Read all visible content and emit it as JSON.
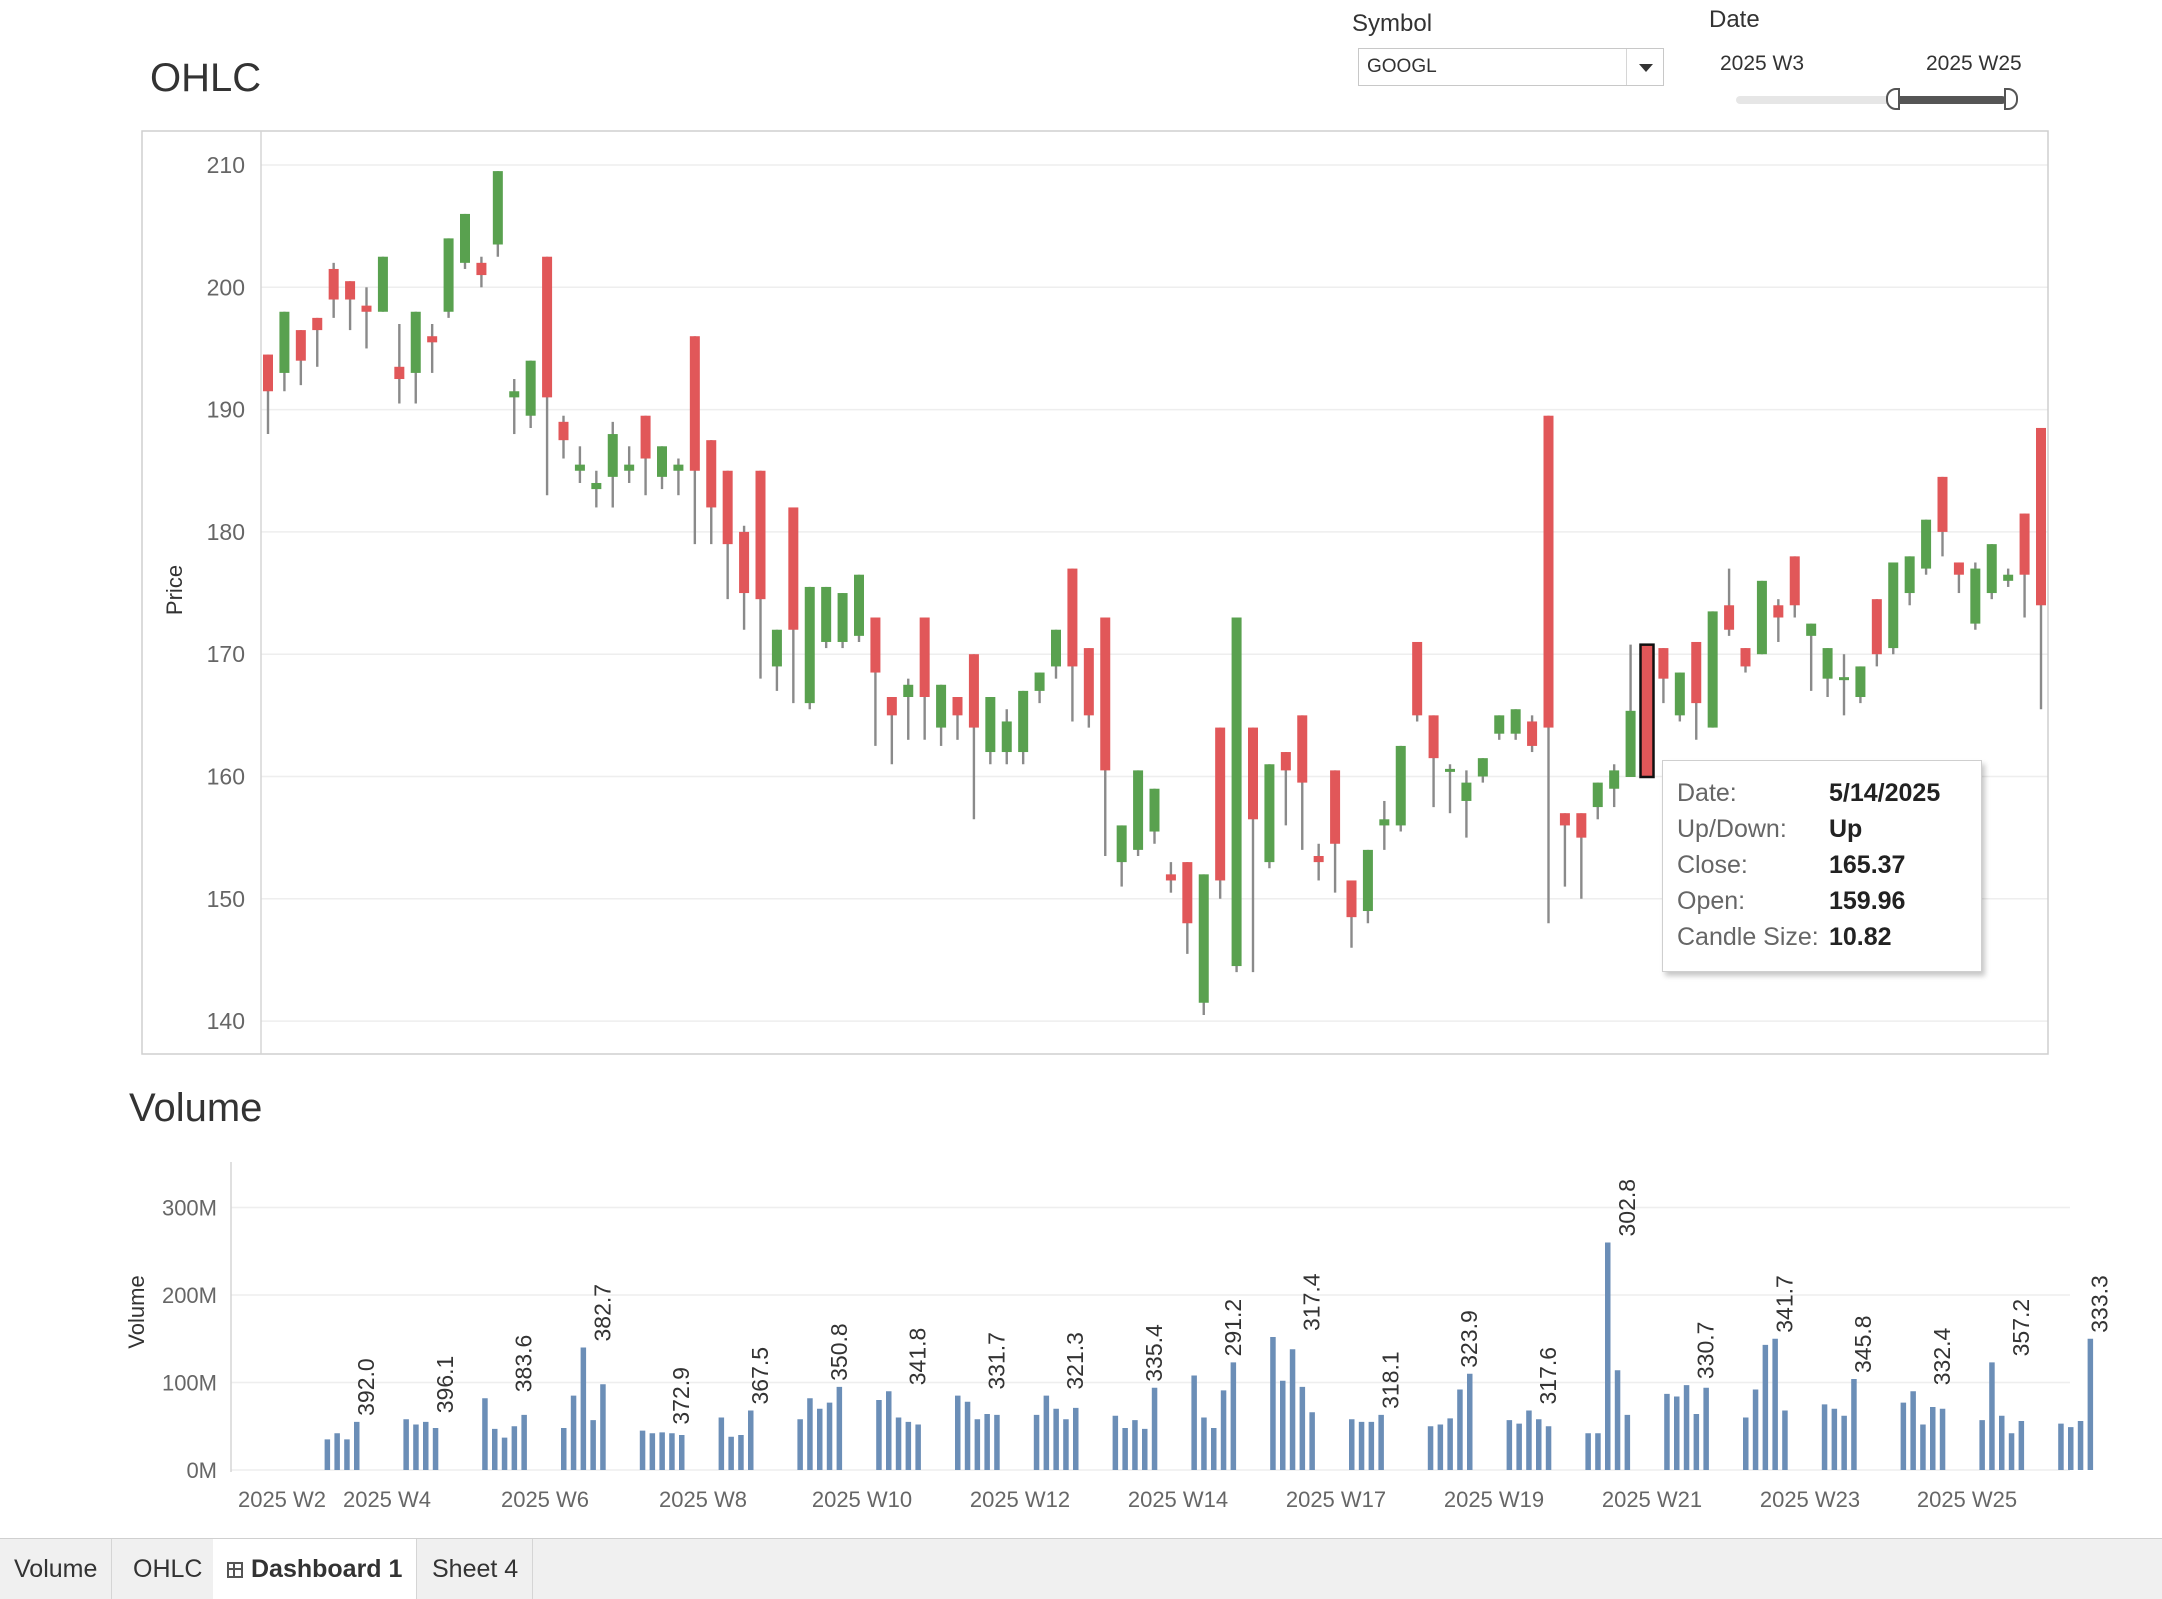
{
  "ohlc": {
    "title": "OHLC",
    "y_axis_label": "Price",
    "y_ticks": [
      "210",
      "200",
      "190",
      "180",
      "170",
      "160",
      "150",
      "140"
    ]
  },
  "volume": {
    "title": "Volume",
    "y_axis_label": "Volume",
    "y_ticks": [
      "300M",
      "200M",
      "100M",
      "0M"
    ],
    "x_ticks": [
      "2025 W2",
      "2025 W4",
      "2025 W6",
      "2025 W8",
      "2025 W10",
      "2025 W12",
      "2025 W14",
      "2025 W17",
      "2025 W19",
      "2025 W21",
      "2025 W23",
      "2025 W25"
    ]
  },
  "filters": {
    "symbol_label": "Symbol",
    "symbol_value": "GOOGL",
    "date_label": "Date",
    "date_start": "2025 W3",
    "date_end": "2025 W25"
  },
  "tooltip": {
    "date_key": "Date:",
    "date_val": "5/14/2025",
    "updown_key": "Up/Down:",
    "updown_val": "Up",
    "close_key": "Close:",
    "close_val": "165.37",
    "open_key": "Open:",
    "open_val": "159.96",
    "size_key": "Candle Size:",
    "size_val": "10.82"
  },
  "tabs": [
    "Volume",
    "OHLC",
    "Dashboard 1",
    "Sheet 4"
  ],
  "colors": {
    "up": "#59a14f",
    "down": "#e15759",
    "volume_bar": "#6b8eb7",
    "wick": "#8a8a8a"
  },
  "chart_data": [
    {
      "type": "candlestick",
      "title": "OHLC",
      "ylabel": "Price",
      "ylim": [
        137,
        212
      ],
      "candles": [
        {
          "o": 194.5,
          "c": 191.5,
          "h": 194.5,
          "l": 188.0
        },
        {
          "o": 193.0,
          "c": 198.0,
          "h": 198.0,
          "l": 191.5
        },
        {
          "o": 196.5,
          "c": 194.0,
          "h": 196.5,
          "l": 192.0
        },
        {
          "o": 197.5,
          "c": 196.5,
          "h": 197.5,
          "l": 193.5
        },
        {
          "o": 201.5,
          "c": 199.0,
          "h": 202.0,
          "l": 197.5
        },
        {
          "o": 200.5,
          "c": 199.0,
          "h": 200.5,
          "l": 196.5
        },
        {
          "o": 198.5,
          "c": 198.0,
          "h": 200.0,
          "l": 195.0
        },
        {
          "o": 198.0,
          "c": 202.5,
          "h": 202.5,
          "l": 198.0
        },
        {
          "o": 193.5,
          "c": 192.5,
          "h": 197.0,
          "l": 190.5
        },
        {
          "o": 193.0,
          "c": 198.0,
          "h": 198.0,
          "l": 190.5
        },
        {
          "o": 196.0,
          "c": 195.5,
          "h": 197.0,
          "l": 193.0
        },
        {
          "o": 198.0,
          "c": 204.0,
          "h": 204.0,
          "l": 197.5
        },
        {
          "o": 202.0,
          "c": 206.0,
          "h": 206.0,
          "l": 201.5
        },
        {
          "o": 202.0,
          "c": 201.0,
          "h": 202.5,
          "l": 200.0
        },
        {
          "o": 203.5,
          "c": 209.5,
          "h": 209.5,
          "l": 202.5
        },
        {
          "o": 191.0,
          "c": 191.5,
          "h": 192.5,
          "l": 188.0
        },
        {
          "o": 189.5,
          "c": 194.0,
          "h": 194.0,
          "l": 188.5
        },
        {
          "o": 202.5,
          "c": 191.0,
          "h": 202.5,
          "l": 183.0
        },
        {
          "o": 189.0,
          "c": 187.5,
          "h": 189.5,
          "l": 186.0
        },
        {
          "o": 185.0,
          "c": 185.5,
          "h": 187.0,
          "l": 184.0
        },
        {
          "o": 183.5,
          "c": 184.0,
          "h": 185.0,
          "l": 182.0
        },
        {
          "o": 184.5,
          "c": 188.0,
          "h": 189.0,
          "l": 182.0
        },
        {
          "o": 185.0,
          "c": 185.5,
          "h": 187.0,
          "l": 184.0
        },
        {
          "o": 189.5,
          "c": 186.0,
          "h": 189.5,
          "l": 183.0
        },
        {
          "o": 184.5,
          "c": 187.0,
          "h": 187.0,
          "l": 183.5
        },
        {
          "o": 185.0,
          "c": 185.5,
          "h": 186.0,
          "l": 183.0
        },
        {
          "o": 196.0,
          "c": 185.0,
          "h": 196.0,
          "l": 179.0
        },
        {
          "o": 187.5,
          "c": 182.0,
          "h": 187.5,
          "l": 179.0
        },
        {
          "o": 185.0,
          "c": 179.0,
          "h": 185.0,
          "l": 174.5
        },
        {
          "o": 180.0,
          "c": 175.0,
          "h": 180.5,
          "l": 172.0
        },
        {
          "o": 185.0,
          "c": 174.5,
          "h": 185.0,
          "l": 168.0
        },
        {
          "o": 169.0,
          "c": 172.0,
          "h": 172.0,
          "l": 167.0
        },
        {
          "o": 182.0,
          "c": 172.0,
          "h": 182.0,
          "l": 166.0
        },
        {
          "o": 166.0,
          "c": 175.5,
          "h": 175.5,
          "l": 165.5
        },
        {
          "o": 171.0,
          "c": 175.5,
          "h": 175.5,
          "l": 170.5
        },
        {
          "o": 171.0,
          "c": 175.0,
          "h": 175.0,
          "l": 170.5
        },
        {
          "o": 171.5,
          "c": 176.5,
          "h": 176.5,
          "l": 171.0
        },
        {
          "o": 173.0,
          "c": 168.5,
          "h": 173.0,
          "l": 162.5
        },
        {
          "o": 166.5,
          "c": 165.0,
          "h": 166.5,
          "l": 161.0
        },
        {
          "o": 166.5,
          "c": 167.5,
          "h": 168.0,
          "l": 163.0
        },
        {
          "o": 173.0,
          "c": 166.5,
          "h": 173.0,
          "l": 163.0
        },
        {
          "o": 164.0,
          "c": 167.5,
          "h": 167.5,
          "l": 162.5
        },
        {
          "o": 166.5,
          "c": 165.0,
          "h": 166.5,
          "l": 163.0
        },
        {
          "o": 170.0,
          "c": 164.0,
          "h": 170.0,
          "l": 156.5
        },
        {
          "o": 162.0,
          "c": 166.5,
          "h": 166.5,
          "l": 161.0
        },
        {
          "o": 162.0,
          "c": 164.5,
          "h": 165.5,
          "l": 161.0
        },
        {
          "o": 162.0,
          "c": 167.0,
          "h": 167.0,
          "l": 161.0
        },
        {
          "o": 167.0,
          "c": 168.5,
          "h": 168.5,
          "l": 166.0
        },
        {
          "o": 169.0,
          "c": 172.0,
          "h": 172.0,
          "l": 168.0
        },
        {
          "o": 177.0,
          "c": 169.0,
          "h": 177.0,
          "l": 164.5
        },
        {
          "o": 170.5,
          "c": 165.0,
          "h": 170.5,
          "l": 164.0
        },
        {
          "o": 173.0,
          "c": 160.5,
          "h": 173.0,
          "l": 153.5
        },
        {
          "o": 153.0,
          "c": 156.0,
          "h": 156.0,
          "l": 151.0
        },
        {
          "o": 154.0,
          "c": 160.5,
          "h": 160.5,
          "l": 153.5
        },
        {
          "o": 155.5,
          "c": 159.0,
          "h": 159.0,
          "l": 154.5
        },
        {
          "o": 152.0,
          "c": 151.5,
          "h": 153.0,
          "l": 150.5
        },
        {
          "o": 153.0,
          "c": 148.0,
          "h": 153.0,
          "l": 145.5
        },
        {
          "o": 141.5,
          "c": 152.0,
          "h": 152.0,
          "l": 140.5
        },
        {
          "o": 164.0,
          "c": 151.5,
          "h": 164.0,
          "l": 150.0
        },
        {
          "o": 144.5,
          "c": 173.0,
          "h": 173.0,
          "l": 144.0
        },
        {
          "o": 164.0,
          "c": 156.5,
          "h": 164.0,
          "l": 144.0
        },
        {
          "o": 153.0,
          "c": 161.0,
          "h": 161.0,
          "l": 152.5
        },
        {
          "o": 162.0,
          "c": 160.5,
          "h": 162.0,
          "l": 156.0
        },
        {
          "o": 165.0,
          "c": 159.5,
          "h": 165.0,
          "l": 154.0
        },
        {
          "o": 153.5,
          "c": 153.0,
          "h": 154.5,
          "l": 151.5
        },
        {
          "o": 160.5,
          "c": 154.5,
          "h": 160.5,
          "l": 150.5
        },
        {
          "o": 151.5,
          "c": 148.5,
          "h": 151.5,
          "l": 146.0
        },
        {
          "o": 149.0,
          "c": 154.0,
          "h": 154.0,
          "l": 148.0
        },
        {
          "o": 156.0,
          "c": 156.5,
          "h": 158.0,
          "l": 154.0
        },
        {
          "o": 156.0,
          "c": 162.5,
          "h": 162.5,
          "l": 155.5
        },
        {
          "o": 171.0,
          "c": 165.0,
          "h": 171.0,
          "l": 164.5
        },
        {
          "o": 165.0,
          "c": 161.5,
          "h": 165.0,
          "l": 157.5
        },
        {
          "o": 160.5,
          "c": 160.5,
          "h": 161.0,
          "l": 157.0
        },
        {
          "o": 158.0,
          "c": 159.5,
          "h": 160.5,
          "l": 155.0
        },
        {
          "o": 160.0,
          "c": 161.5,
          "h": 161.5,
          "l": 159.5
        },
        {
          "o": 163.5,
          "c": 165.0,
          "h": 165.0,
          "l": 163.0
        },
        {
          "o": 163.5,
          "c": 165.5,
          "h": 165.5,
          "l": 163.0
        },
        {
          "o": 164.5,
          "c": 162.5,
          "h": 165.0,
          "l": 162.0
        },
        {
          "o": 189.5,
          "c": 164.0,
          "h": 189.5,
          "l": 148.0
        },
        {
          "o": 157.0,
          "c": 156.0,
          "h": 157.0,
          "l": 151.0
        },
        {
          "o": 157.0,
          "c": 155.0,
          "h": 157.0,
          "l": 150.0
        },
        {
          "o": 157.5,
          "c": 159.5,
          "h": 159.5,
          "l": 156.5
        },
        {
          "o": 159.0,
          "c": 160.5,
          "h": 161.0,
          "l": 157.5
        },
        {
          "o": 159.96,
          "c": 165.37,
          "h": 170.78,
          "l": 159.96
        },
        {
          "o": 170.0,
          "c": 166.5,
          "h": 170.0,
          "l": 162.5
        },
        {
          "o": 170.5,
          "c": 168.0,
          "h": 170.5,
          "l": 166.0
        },
        {
          "o": 165.0,
          "c": 168.5,
          "h": 168.5,
          "l": 164.5
        },
        {
          "o": 171.0,
          "c": 166.0,
          "h": 171.0,
          "l": 163.0
        },
        {
          "o": 164.0,
          "c": 173.5,
          "h": 173.5,
          "l": 164.0
        },
        {
          "o": 174.0,
          "c": 172.0,
          "h": 177.0,
          "l": 171.5
        },
        {
          "o": 170.5,
          "c": 169.0,
          "h": 170.5,
          "l": 168.5
        },
        {
          "o": 170.0,
          "c": 176.0,
          "h": 176.0,
          "l": 170.0
        },
        {
          "o": 174.0,
          "c": 173.0,
          "h": 174.5,
          "l": 171.0
        },
        {
          "o": 178.0,
          "c": 174.0,
          "h": 178.0,
          "l": 173.0
        },
        {
          "o": 171.5,
          "c": 172.5,
          "h": 172.5,
          "l": 167.0
        },
        {
          "o": 168.0,
          "c": 170.5,
          "h": 170.5,
          "l": 166.5
        },
        {
          "o": 168.0,
          "c": 168.0,
          "h": 170.0,
          "l": 165.0
        },
        {
          "o": 166.5,
          "c": 169.0,
          "h": 169.0,
          "l": 166.0
        },
        {
          "o": 174.5,
          "c": 170.0,
          "h": 174.5,
          "l": 169.0
        },
        {
          "o": 170.5,
          "c": 177.5,
          "h": 177.5,
          "l": 170.0
        },
        {
          "o": 175.0,
          "c": 178.0,
          "h": 178.0,
          "l": 174.0
        },
        {
          "o": 177.0,
          "c": 181.0,
          "h": 181.0,
          "l": 176.5
        },
        {
          "o": 184.5,
          "c": 180.0,
          "h": 184.5,
          "l": 178.0
        },
        {
          "o": 177.5,
          "c": 176.5,
          "h": 177.5,
          "l": 175.0
        },
        {
          "o": 172.5,
          "c": 177.0,
          "h": 177.5,
          "l": 172.0
        },
        {
          "o": 175.0,
          "c": 179.0,
          "h": 179.0,
          "l": 174.5
        },
        {
          "o": 176.0,
          "c": 176.5,
          "h": 177.0,
          "l": 175.5
        },
        {
          "o": 181.5,
          "c": 176.5,
          "h": 181.5,
          "l": 173.0
        },
        {
          "o": 188.5,
          "c": 174.0,
          "h": 188.5,
          "l": 165.5
        }
      ]
    },
    {
      "type": "bar",
      "title": "Volume",
      "ylabel": "Volume",
      "ylim": [
        0,
        300
      ],
      "unit": "M",
      "weeks": [
        {
          "values": [],
          "label": ""
        },
        {
          "values": [
            35,
            42,
            35,
            55
          ],
          "label": "392.0"
        },
        {
          "values": [
            58,
            52,
            55,
            48
          ],
          "label": "396.1"
        },
        {
          "values": [
            82,
            47,
            37,
            50,
            63
          ],
          "label": "383.6"
        },
        {
          "values": [
            48,
            85,
            140,
            57,
            98
          ],
          "label": "382.7"
        },
        {
          "values": [
            45,
            42,
            43,
            42,
            40
          ],
          "label": "372.9"
        },
        {
          "values": [
            60,
            38,
            40,
            68
          ],
          "label": "367.5"
        },
        {
          "values": [
            58,
            82,
            70,
            77,
            95
          ],
          "label": "350.8"
        },
        {
          "values": [
            80,
            90,
            60,
            55,
            52
          ],
          "label": "341.8"
        },
        {
          "values": [
            85,
            78,
            58,
            64,
            63
          ],
          "label": "331.7"
        },
        {
          "values": [
            63,
            85,
            70,
            58,
            71
          ],
          "label": "321.3"
        },
        {
          "values": [
            62,
            48,
            57,
            47,
            94
          ],
          "label": "335.4"
        },
        {
          "values": [
            108,
            60,
            48,
            91,
            123
          ],
          "label": "291.2"
        },
        {
          "values": [
            152,
            102,
            138,
            95,
            66
          ],
          "label": "317.4"
        },
        {
          "values": [
            58,
            55,
            55,
            63
          ],
          "label": "318.1"
        },
        {
          "values": [
            50,
            52,
            59,
            92,
            110
          ],
          "label": "323.9"
        },
        {
          "values": [
            57,
            53,
            68,
            58,
            50
          ],
          "label": "317.6"
        },
        {
          "values": [
            42,
            42,
            260,
            114,
            63
          ],
          "label": "302.8"
        },
        {
          "values": [
            87,
            84,
            97,
            64,
            94
          ],
          "label": "330.7"
        },
        {
          "values": [
            60,
            92,
            143,
            150,
            68
          ],
          "label": "341.7"
        },
        {
          "values": [
            75,
            70,
            62,
            104
          ],
          "label": "345.8"
        },
        {
          "values": [
            77,
            90,
            52,
            72,
            70
          ],
          "label": "332.4"
        },
        {
          "values": [
            57,
            123,
            62,
            42,
            56
          ],
          "label": "357.2"
        },
        {
          "values": [
            53,
            49,
            56,
            150
          ],
          "label": "333.3"
        }
      ]
    }
  ]
}
